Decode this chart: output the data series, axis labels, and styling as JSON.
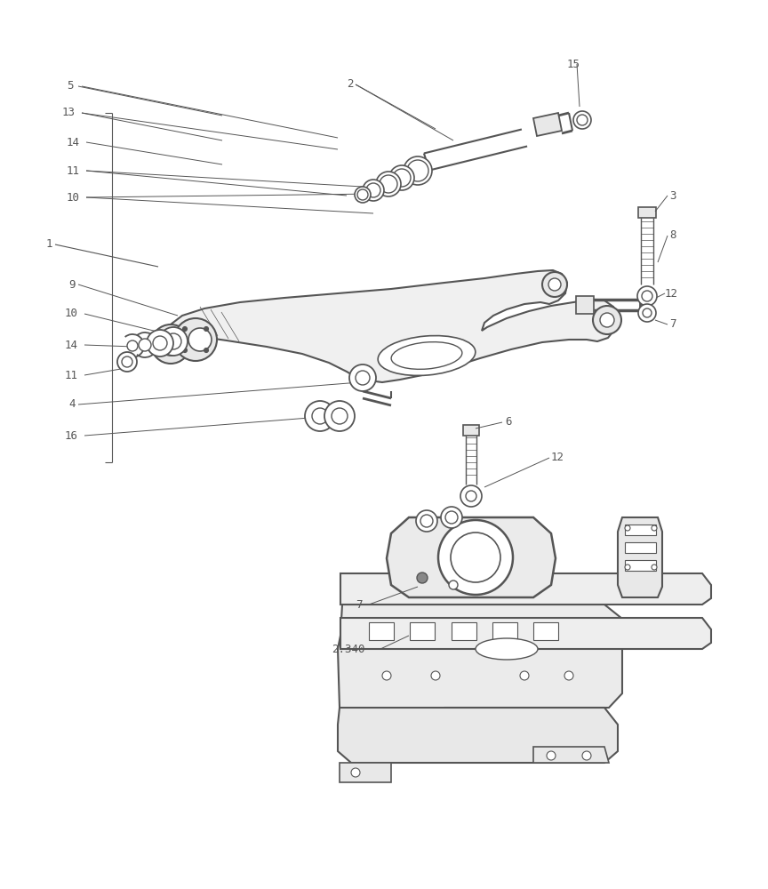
{
  "bg": "#ffffff",
  "lc": "#555555",
  "tc": "#555555",
  "lw": 1.0,
  "figsize": [
    8.64,
    10.0
  ],
  "dpi": 100
}
